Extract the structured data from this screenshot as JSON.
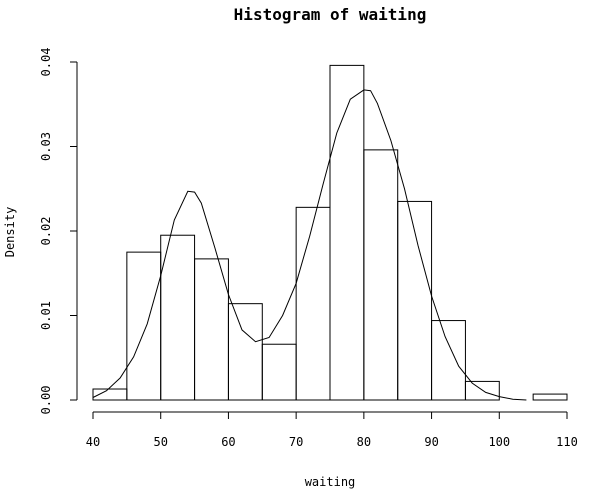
{
  "chart_data": {
    "type": "bar",
    "title": "Histogram of waiting",
    "xlabel": "waiting",
    "ylabel": "Density",
    "xlim": [
      40,
      110
    ],
    "ylim": [
      0,
      0.04
    ],
    "x_ticks": [
      40,
      50,
      60,
      70,
      80,
      90,
      100,
      110
    ],
    "y_ticks": [
      "0.00",
      "0.01",
      "0.02",
      "0.03",
      "0.04"
    ],
    "bins": [
      {
        "from": 40,
        "to": 45,
        "density": 0.0013
      },
      {
        "from": 45,
        "to": 50,
        "density": 0.0175
      },
      {
        "from": 50,
        "to": 55,
        "density": 0.0195
      },
      {
        "from": 55,
        "to": 60,
        "density": 0.0167
      },
      {
        "from": 60,
        "to": 65,
        "density": 0.0114
      },
      {
        "from": 65,
        "to": 70,
        "density": 0.0066
      },
      {
        "from": 70,
        "to": 75,
        "density": 0.0228
      },
      {
        "from": 75,
        "to": 80,
        "density": 0.0396
      },
      {
        "from": 80,
        "to": 85,
        "density": 0.0296
      },
      {
        "from": 85,
        "to": 90,
        "density": 0.0235
      },
      {
        "from": 90,
        "to": 95,
        "density": 0.0094
      },
      {
        "from": 95,
        "to": 100,
        "density": 0.0022
      },
      {
        "from": 100,
        "to": 105,
        "density": 0.0
      },
      {
        "from": 105,
        "to": 110,
        "density": 0.0007
      }
    ],
    "density_curve": [
      {
        "x": 40,
        "y": 0.0003
      },
      {
        "x": 42,
        "y": 0.0011
      },
      {
        "x": 44,
        "y": 0.0026
      },
      {
        "x": 46,
        "y": 0.0051
      },
      {
        "x": 48,
        "y": 0.009
      },
      {
        "x": 50,
        "y": 0.0147
      },
      {
        "x": 52,
        "y": 0.0213
      },
      {
        "x": 54,
        "y": 0.0247
      },
      {
        "x": 55,
        "y": 0.0246
      },
      {
        "x": 56,
        "y": 0.0233
      },
      {
        "x": 58,
        "y": 0.018
      },
      {
        "x": 60,
        "y": 0.0125
      },
      {
        "x": 62,
        "y": 0.0083
      },
      {
        "x": 64,
        "y": 0.0069
      },
      {
        "x": 66,
        "y": 0.0074
      },
      {
        "x": 68,
        "y": 0.01
      },
      {
        "x": 70,
        "y": 0.0138
      },
      {
        "x": 72,
        "y": 0.0194
      },
      {
        "x": 74,
        "y": 0.0256
      },
      {
        "x": 76,
        "y": 0.0316
      },
      {
        "x": 78,
        "y": 0.0356
      },
      {
        "x": 80,
        "y": 0.0367
      },
      {
        "x": 81,
        "y": 0.0366
      },
      {
        "x": 82,
        "y": 0.0351
      },
      {
        "x": 84,
        "y": 0.0307
      },
      {
        "x": 86,
        "y": 0.025
      },
      {
        "x": 88,
        "y": 0.0183
      },
      {
        "x": 90,
        "y": 0.0123
      },
      {
        "x": 92,
        "y": 0.0075
      },
      {
        "x": 94,
        "y": 0.004
      },
      {
        "x": 96,
        "y": 0.002
      },
      {
        "x": 98,
        "y": 0.0009
      },
      {
        "x": 100,
        "y": 0.0004
      },
      {
        "x": 102,
        "y": 0.0001
      },
      {
        "x": 104,
        "y": 0.0
      }
    ]
  }
}
